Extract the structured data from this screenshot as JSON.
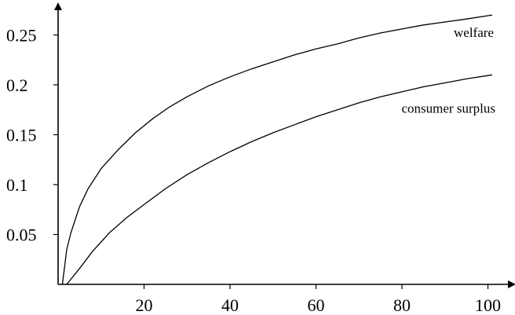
{
  "chart_data": {
    "type": "line",
    "title": "",
    "xlabel": "",
    "ylabel": "",
    "xlim": [
      0,
      104
    ],
    "ylim": [
      0,
      0.285
    ],
    "x_ticks": [
      20,
      40,
      60,
      80,
      100
    ],
    "x_tick_labels": [
      "20",
      "40",
      "60",
      "80",
      "100"
    ],
    "y_ticks": [
      0.05,
      0.1,
      0.15,
      0.2,
      0.25
    ],
    "y_tick_labels": [
      "0.05",
      "0.1",
      "0.15",
      "0.2",
      "0.25"
    ],
    "grid": false,
    "legend": "none",
    "series": [
      {
        "name": "welfare",
        "color": "#000000",
        "x": [
          1,
          2,
          3,
          5,
          7,
          10,
          14,
          18,
          22,
          26,
          30,
          35,
          40,
          45,
          50,
          55,
          60,
          65,
          70,
          75,
          80,
          85,
          90,
          95,
          101
        ],
        "y": [
          0.0,
          0.035,
          0.052,
          0.078,
          0.096,
          0.116,
          0.135,
          0.152,
          0.166,
          0.178,
          0.188,
          0.199,
          0.208,
          0.216,
          0.223,
          0.23,
          0.236,
          0.241,
          0.247,
          0.252,
          0.256,
          0.26,
          0.263,
          0.266,
          0.27
        ]
      },
      {
        "name": "consumer surplus",
        "color": "#000000",
        "x": [
          2,
          5,
          8,
          12,
          16,
          20,
          25,
          30,
          35,
          40,
          45,
          50,
          55,
          60,
          65,
          70,
          75,
          80,
          85,
          90,
          95,
          101
        ],
        "y": [
          0.0,
          0.016,
          0.033,
          0.052,
          0.067,
          0.08,
          0.096,
          0.11,
          0.122,
          0.133,
          0.143,
          0.152,
          0.16,
          0.168,
          0.175,
          0.182,
          0.188,
          0.193,
          0.198,
          0.202,
          0.206,
          0.21
        ]
      }
    ],
    "annotations": [
      {
        "text": "welfare",
        "series": "welfare"
      },
      {
        "text": "consumer surplus",
        "series": "consumer surplus"
      }
    ]
  }
}
